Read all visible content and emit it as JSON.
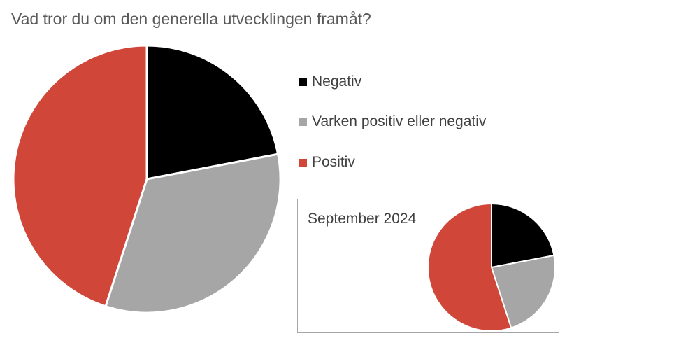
{
  "chart_data": [
    {
      "type": "pie",
      "title": "Vad tror du om den generella utvecklingen framåt?",
      "categories": [
        "Negativ",
        "Varken positiv eller negativ",
        "Positiv"
      ],
      "values": [
        22,
        33,
        45
      ],
      "colors": [
        "#000000",
        "#a6a6a6",
        "#d0473a"
      ],
      "legend": "right"
    },
    {
      "type": "pie",
      "title": "September 2024",
      "categories": [
        "Negativ",
        "Varken positiv eller negativ",
        "Positiv"
      ],
      "values": [
        22,
        23,
        55
      ],
      "colors": [
        "#000000",
        "#a6a6a6",
        "#d0473a"
      ]
    }
  ]
}
